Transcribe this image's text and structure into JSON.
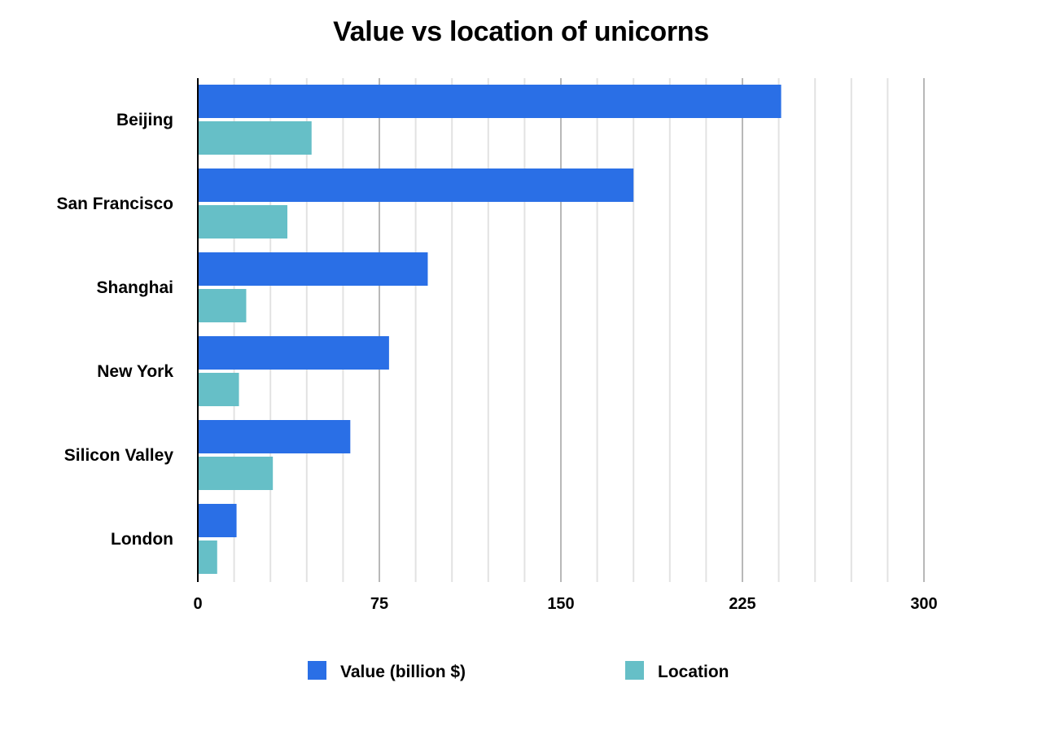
{
  "chart_data": {
    "type": "bar",
    "orientation": "horizontal",
    "title": "Value vs location of unicorns",
    "xlabel": "",
    "ylabel": "",
    "categories": [
      "Beijing",
      "San Francisco",
      "Shanghai",
      "New York",
      "Silicon Valley",
      "London"
    ],
    "series": [
      {
        "name": "Value (billion $)",
        "color": "#2A6FE6",
        "values": [
          241,
          180,
          95,
          79,
          63,
          16
        ]
      },
      {
        "name": "Location",
        "color": "#66BFC7",
        "values": [
          47,
          37,
          20,
          17,
          31,
          8
        ]
      }
    ],
    "xlim": [
      0,
      300
    ],
    "xticks": [
      "0",
      "75",
      "150",
      "225",
      "300"
    ],
    "minor_grid_step": 15,
    "grid": true,
    "legend": "bottom"
  }
}
